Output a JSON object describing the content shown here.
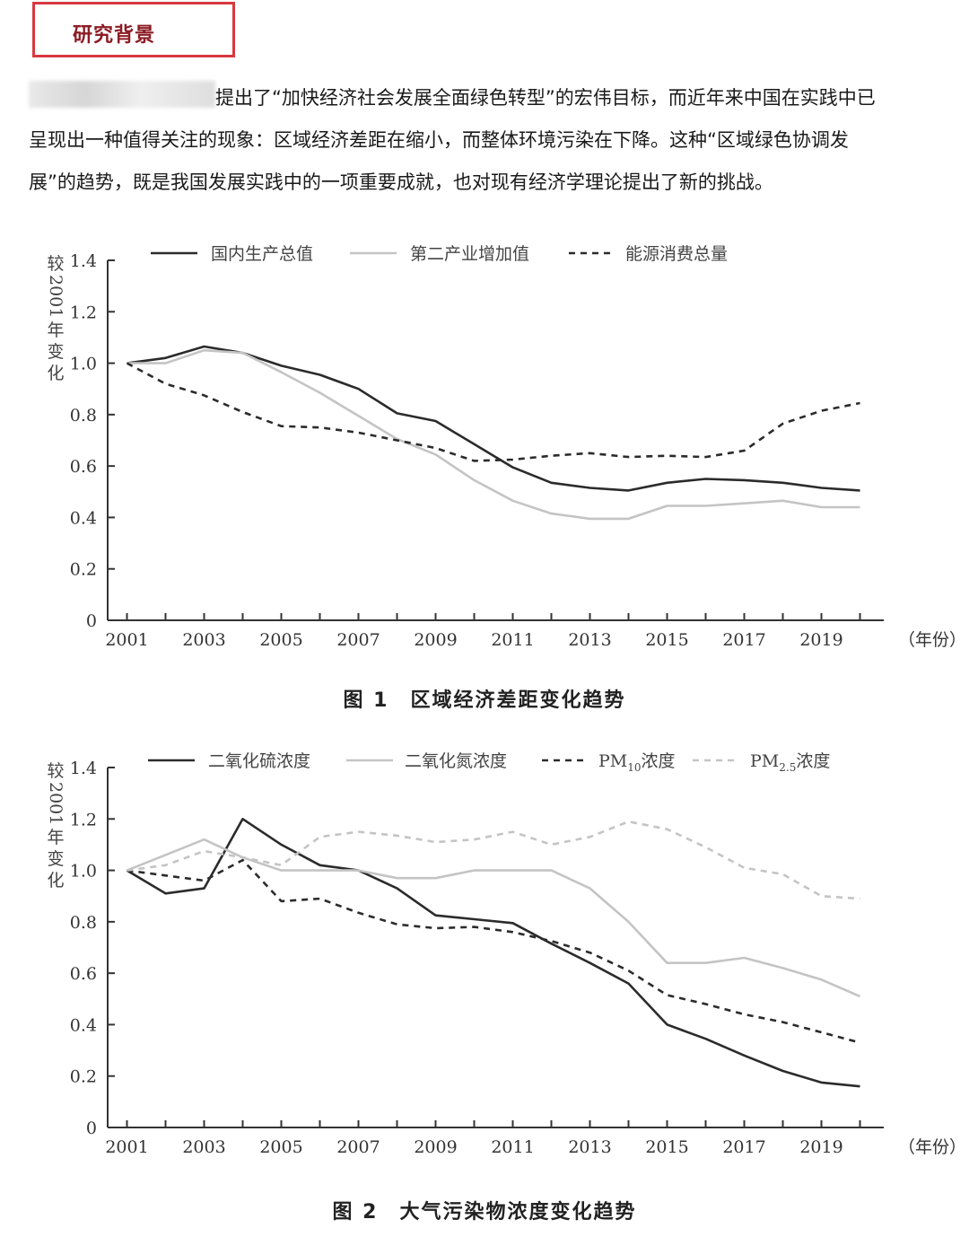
{
  "header": {
    "section_title": "研究背景"
  },
  "intro": {
    "line1": "提出了“加快经济社会发展全面绿色转型”的宏伟目标，而近年来中国在实践中已",
    "line2": "呈现出一种值得关注的现象：区域经济差距在缩小，而整体环境污染在下降。这种“区域绿色协调发",
    "line3": "展”的趋势，既是我国发展实践中的一项重要成就，也对现有经济学理论提出了新的挑战。"
  },
  "chart_data": [
    {
      "type": "line",
      "caption": "图 1　区域经济差距变化趋势",
      "ylabel": "较2001年变化",
      "xunit": "（年份）",
      "ylim": [
        0,
        1.4
      ],
      "yticks": [
        "0",
        "0.2",
        "0.4",
        "0.6",
        "0.8",
        "1.0",
        "1.2",
        "1.4"
      ],
      "xticks": [
        "2001",
        "2003",
        "2005",
        "2007",
        "2009",
        "2011",
        "2013",
        "2015",
        "2017",
        "2019"
      ],
      "x": [
        2001,
        2002,
        2003,
        2004,
        2005,
        2006,
        2007,
        2008,
        2009,
        2010,
        2011,
        2012,
        2013,
        2014,
        2015,
        2016,
        2017,
        2018,
        2019,
        2020
      ],
      "legend_position": "top",
      "series": [
        {
          "name": "国内生产总值",
          "color": "#2b2b2b",
          "dash": "solid",
          "values": [
            1.0,
            1.02,
            1.065,
            1.04,
            0.99,
            0.955,
            0.9,
            0.805,
            0.775,
            0.685,
            0.595,
            0.535,
            0.515,
            0.505,
            0.535,
            0.55,
            0.545,
            0.535,
            0.515,
            0.505
          ]
        },
        {
          "name": "第二产业增加值",
          "color": "#c4c4c4",
          "dash": "solid",
          "values": [
            1.0,
            1.0,
            1.05,
            1.04,
            0.965,
            0.885,
            0.795,
            0.705,
            0.645,
            0.545,
            0.465,
            0.415,
            0.395,
            0.395,
            0.445,
            0.445,
            0.455,
            0.465,
            0.44,
            0.44
          ]
        },
        {
          "name": "能源消费总量",
          "color": "#2b2b2b",
          "dash": "dashed",
          "values": [
            1.0,
            0.92,
            0.875,
            0.81,
            0.755,
            0.75,
            0.73,
            0.7,
            0.67,
            0.62,
            0.625,
            0.64,
            0.65,
            0.635,
            0.64,
            0.635,
            0.66,
            0.765,
            0.815,
            0.845
          ]
        }
      ]
    },
    {
      "type": "line",
      "caption": "图 2　大气污染物浓度变化趋势",
      "ylabel": "较2001年变化",
      "xunit": "（年份）",
      "ylim": [
        0,
        1.4
      ],
      "yticks": [
        "0",
        "0.2",
        "0.4",
        "0.6",
        "0.8",
        "1.0",
        "1.2",
        "1.4"
      ],
      "xticks": [
        "2001",
        "2003",
        "2005",
        "2007",
        "2009",
        "2011",
        "2013",
        "2015",
        "2017",
        "2019"
      ],
      "x": [
        2001,
        2002,
        2003,
        2004,
        2005,
        2006,
        2007,
        2008,
        2009,
        2010,
        2011,
        2012,
        2013,
        2014,
        2015,
        2016,
        2017,
        2018,
        2019,
        2020
      ],
      "legend_position": "top",
      "series": [
        {
          "name": "二氧化硫浓度",
          "color": "#2b2b2b",
          "dash": "solid",
          "values": [
            1.0,
            0.91,
            0.93,
            1.2,
            1.1,
            1.02,
            1.0,
            0.93,
            0.825,
            0.81,
            0.795,
            0.715,
            0.64,
            0.56,
            0.4,
            0.345,
            0.28,
            0.22,
            0.175,
            0.16
          ]
        },
        {
          "name": "二氧化氮浓度",
          "color": "#c4c4c4",
          "dash": "solid",
          "values": [
            1.0,
            1.06,
            1.12,
            1.05,
            1.0,
            1.0,
            1.0,
            0.97,
            0.97,
            1.0,
            1.0,
            1.0,
            0.93,
            0.8,
            0.64,
            0.64,
            0.66,
            0.62,
            0.575,
            0.51
          ]
        },
        {
          "name_main": "PM",
          "name_sub": "10",
          "name_tail": "浓度",
          "color": "#2b2b2b",
          "dash": "dashed",
          "values": [
            1.0,
            0.98,
            0.96,
            1.04,
            0.88,
            0.89,
            0.835,
            0.79,
            0.775,
            0.78,
            0.76,
            0.725,
            0.68,
            0.61,
            0.515,
            0.48,
            0.44,
            0.41,
            0.37,
            0.33
          ]
        },
        {
          "name_main": "PM",
          "name_sub": "2.5",
          "name_tail": "浓度",
          "color": "#c4c4c4",
          "dash": "dashed",
          "values": [
            1.0,
            1.02,
            1.075,
            1.05,
            1.02,
            1.13,
            1.15,
            1.135,
            1.11,
            1.12,
            1.15,
            1.1,
            1.13,
            1.19,
            1.16,
            1.09,
            1.01,
            0.985,
            0.9,
            0.89
          ]
        }
      ]
    }
  ]
}
